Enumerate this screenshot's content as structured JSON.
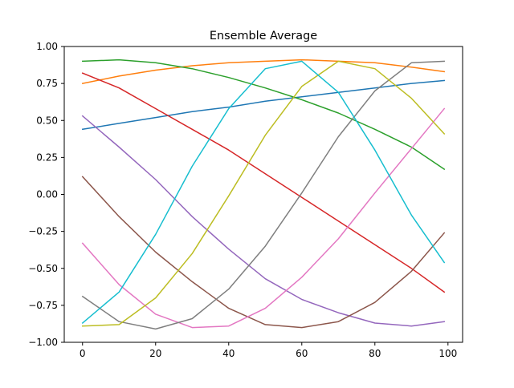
{
  "chart_data": {
    "type": "line",
    "title": "Ensemble Average",
    "xlabel": "",
    "ylabel": "",
    "xlim": [
      -5,
      104
    ],
    "ylim": [
      -1.0,
      1.0
    ],
    "x_ticks": [
      0,
      20,
      40,
      60,
      80,
      100
    ],
    "x_tick_labels": [
      "0",
      "20",
      "40",
      "60",
      "80",
      "100"
    ],
    "y_ticks": [
      -1.0,
      -0.75,
      -0.5,
      -0.25,
      0.0,
      0.25,
      0.5,
      0.75,
      1.0
    ],
    "y_tick_labels": [
      "−1.00",
      "−0.75",
      "−0.50",
      "−0.25",
      "0.00",
      "0.25",
      "0.50",
      "0.75",
      "1.00"
    ],
    "grid": false,
    "legend": "none",
    "x": [
      0,
      10,
      20,
      30,
      40,
      50,
      60,
      70,
      80,
      90,
      99
    ],
    "series": [
      {
        "color": "#1f77b4",
        "values": [
          0.44,
          0.48,
          0.52,
          0.56,
          0.59,
          0.63,
          0.66,
          0.69,
          0.72,
          0.75,
          0.77
        ]
      },
      {
        "color": "#ff7f0e",
        "values": [
          0.75,
          0.8,
          0.84,
          0.87,
          0.89,
          0.9,
          0.91,
          0.9,
          0.89,
          0.86,
          0.83
        ]
      },
      {
        "color": "#2ca02c",
        "values": [
          0.9,
          0.91,
          0.89,
          0.85,
          0.79,
          0.72,
          0.64,
          0.55,
          0.44,
          0.32,
          0.17
        ]
      },
      {
        "color": "#d62728",
        "values": [
          0.82,
          0.72,
          0.58,
          0.44,
          0.3,
          0.14,
          -0.02,
          -0.18,
          -0.34,
          -0.5,
          -0.66
        ]
      },
      {
        "color": "#9467bd",
        "values": [
          0.53,
          0.32,
          0.1,
          -0.15,
          -0.37,
          -0.57,
          -0.71,
          -0.8,
          -0.87,
          -0.89,
          -0.86
        ]
      },
      {
        "color": "#8c564b",
        "values": [
          0.12,
          -0.15,
          -0.39,
          -0.59,
          -0.77,
          -0.88,
          -0.9,
          -0.86,
          -0.73,
          -0.52,
          -0.26
        ]
      },
      {
        "color": "#e377c2",
        "values": [
          -0.33,
          -0.61,
          -0.81,
          -0.9,
          -0.89,
          -0.77,
          -0.56,
          -0.3,
          0.01,
          0.31,
          0.58
        ]
      },
      {
        "color": "#7f7f7f",
        "values": [
          -0.69,
          -0.86,
          -0.91,
          -0.84,
          -0.64,
          -0.35,
          0.01,
          0.39,
          0.7,
          0.89,
          0.9
        ]
      },
      {
        "color": "#bcbd22",
        "values": [
          -0.89,
          -0.88,
          -0.7,
          -0.4,
          -0.01,
          0.4,
          0.73,
          0.9,
          0.85,
          0.65,
          0.41
        ]
      },
      {
        "color": "#17becf",
        "values": [
          -0.87,
          -0.66,
          -0.27,
          0.19,
          0.58,
          0.85,
          0.9,
          0.69,
          0.3,
          -0.14,
          -0.46
        ]
      }
    ]
  }
}
